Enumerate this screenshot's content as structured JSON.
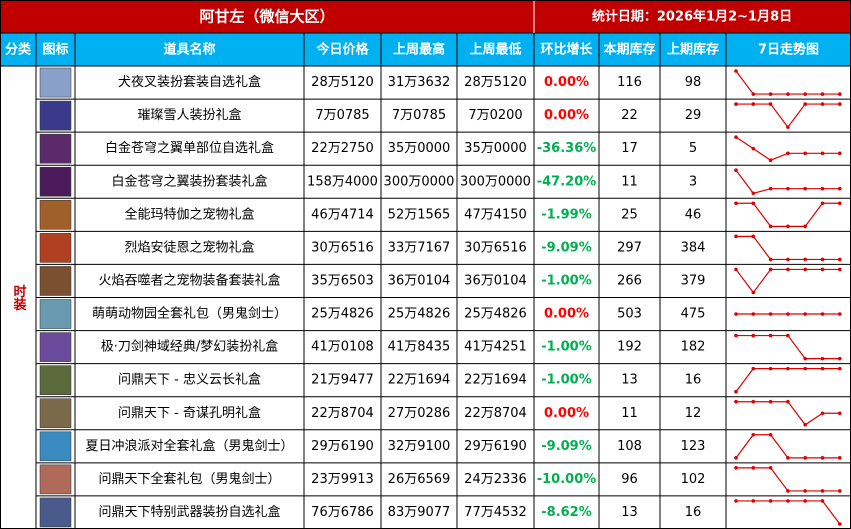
{
  "header": {
    "title": "阿甘左（微信大区）",
    "date": "统计日期：2026年1月2~1月8日"
  },
  "columns": [
    "分类",
    "图标",
    "道具名称",
    "今日价格",
    "上周最高",
    "上周最低",
    "环比增长",
    "本期库存",
    "上期库存",
    "7日走势图"
  ],
  "category": "时装",
  "rows": [
    {
      "name": "犬夜叉装扮套装自选礼盒",
      "today": "28万5120",
      "high": "31万3632",
      "low": "28万5120",
      "change": "0.00%",
      "stock": 116,
      "prev_stock": 98,
      "trend": [
        100,
        0,
        0,
        0,
        0,
        0,
        0
      ]
    },
    {
      "name": "璀璨雪人装扮礼盒",
      "today": "7万0785",
      "high": "7万0785",
      "low": "7万0200",
      "change": "0.00%",
      "stock": 22,
      "prev_stock": 29,
      "trend": [
        100,
        100,
        100,
        0,
        100,
        100,
        100
      ]
    },
    {
      "name": "白金苍穹之翼单部位自选礼盒",
      "today": "22万2750",
      "high": "35万0000",
      "low": "35万0000",
      "change": "-36.36%",
      "stock": 17,
      "prev_stock": 5,
      "trend": [
        100,
        50,
        0,
        30,
        30,
        30,
        30
      ]
    },
    {
      "name": "白金苍穹之翼装扮套装礼盒",
      "today": "158万4000",
      "high": "300万0000",
      "low": "300万0000",
      "change": "-47.20%",
      "stock": 11,
      "prev_stock": 3,
      "trend": [
        100,
        0,
        20,
        20,
        20,
        20,
        20
      ]
    },
    {
      "name": "全能玛特伽之宠物礼盒",
      "today": "46万4714",
      "high": "52万1565",
      "low": "47万4150",
      "change": "-1.99%",
      "stock": 25,
      "prev_stock": 46,
      "trend": [
        100,
        100,
        0,
        0,
        0,
        100,
        100
      ]
    },
    {
      "name": "烈焰安徒恩之宠物礼盒",
      "today": "30万6516",
      "high": "33万7167",
      "low": "30万6516",
      "change": "-9.09%",
      "stock": 297,
      "prev_stock": 384,
      "trend": [
        100,
        100,
        0,
        0,
        0,
        0,
        0
      ]
    },
    {
      "name": "火焰吞噬者之宠物装备套装礼盒",
      "today": "35万6503",
      "high": "36万0104",
      "low": "36万0104",
      "change": "-1.00%",
      "stock": 266,
      "prev_stock": 379,
      "trend": [
        100,
        0,
        100,
        100,
        100,
        100,
        100
      ]
    },
    {
      "name": "萌萌动物园全套礼包（男鬼剑士）",
      "today": "25万4826",
      "high": "25万4826",
      "low": "25万4826",
      "change": "0.00%",
      "stock": 503,
      "prev_stock": 475,
      "trend": [
        50,
        50,
        50,
        50,
        50,
        50,
        50
      ]
    },
    {
      "name": "极·刀剑神域经典/梦幻装扮礼盒",
      "today": "41万0108",
      "high": "41万8435",
      "low": "41万4251",
      "change": "-1.00%",
      "stock": 192,
      "prev_stock": 182,
      "trend": [
        100,
        100,
        100,
        100,
        0,
        0,
        0
      ]
    },
    {
      "name": "问鼎天下 - 忠义云长礼盒",
      "today": "21万9477",
      "high": "22万1694",
      "low": "22万1694",
      "change": "-1.00%",
      "stock": 13,
      "prev_stock": 16,
      "trend": [
        0,
        100,
        100,
        100,
        100,
        100,
        100
      ]
    },
    {
      "name": "问鼎天下 - 奇谋孔明礼盒",
      "today": "22万8704",
      "high": "27万0286",
      "low": "22万8704",
      "change": "0.00%",
      "stock": 11,
      "prev_stock": 12,
      "trend": [
        100,
        100,
        100,
        100,
        0,
        50,
        50
      ]
    },
    {
      "name": "夏日冲浪派对全套礼盒（男鬼剑士）",
      "today": "29万6190",
      "high": "32万9100",
      "low": "29万6190",
      "change": "-9.09%",
      "stock": 108,
      "prev_stock": 123,
      "trend": [
        0,
        100,
        100,
        0,
        0,
        0,
        0
      ]
    },
    {
      "name": "问鼎天下全套礼包（男鬼剑士）",
      "today": "23万9913",
      "high": "26万6569",
      "low": "24万2336",
      "change": "-10.00%",
      "stock": 96,
      "prev_stock": 102,
      "trend": [
        100,
        100,
        100,
        0,
        0,
        0,
        0
      ]
    },
    {
      "name": "问鼎天下特别武器装扮自选礼盒",
      "today": "76万6786",
      "high": "83万9077",
      "low": "77万4532",
      "change": "-8.62%",
      "stock": 13,
      "prev_stock": 16,
      "trend": [
        100,
        100,
        100,
        100,
        100,
        100,
        0
      ]
    }
  ]
}
